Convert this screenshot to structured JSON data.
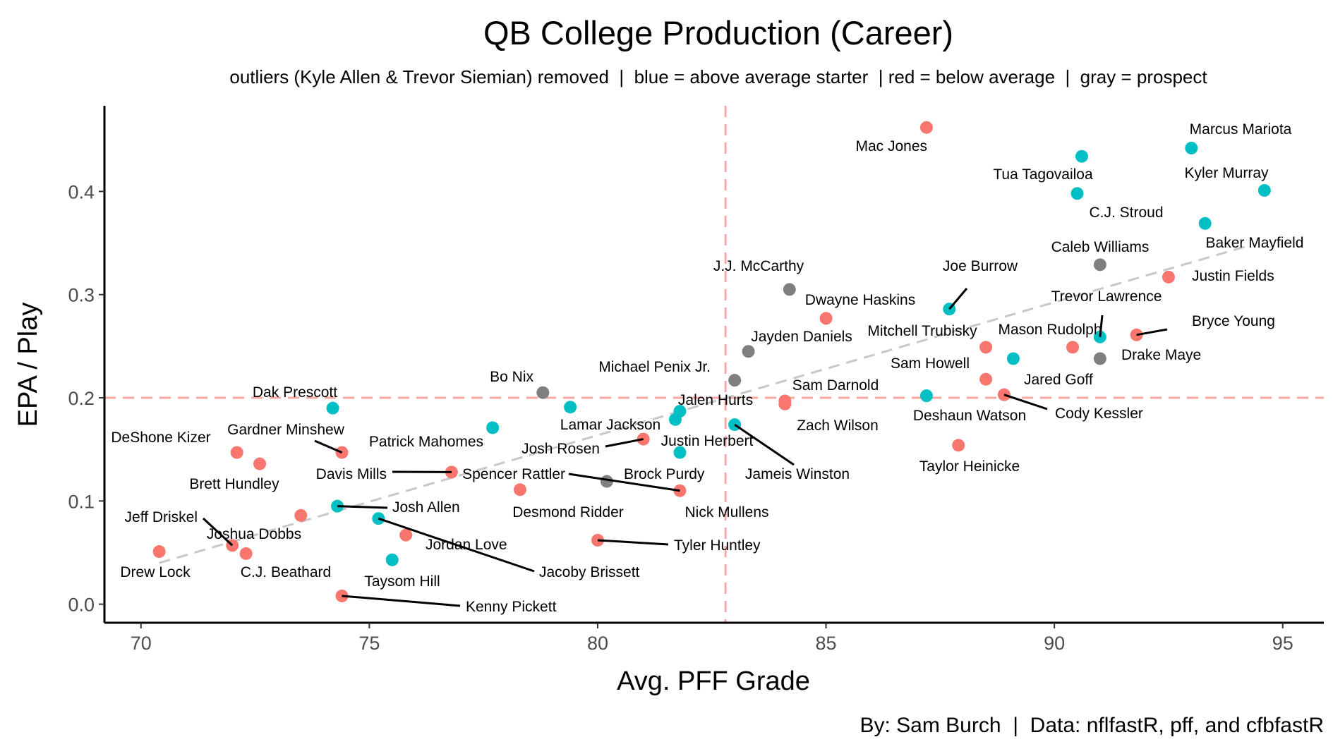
{
  "chart_data": {
    "type": "scatter",
    "title": "QB College Production (Career)",
    "subtitle": "outliers (Kyle Allen & Trevor Siemian) removed  |  blue = above average starter  | red = below average  |  gray = prospect",
    "caption": "By: Sam Burch  |  Data: nflfastR, pff, and cfbfastR",
    "xlabel": "Avg. PFF Grade",
    "ylabel": "EPA / Play",
    "xlim": [
      69.2,
      95.9
    ],
    "ylim": [
      -0.018,
      0.483
    ],
    "x_ticks": [
      70,
      75,
      80,
      85,
      90,
      95
    ],
    "y_ticks": [
      0.0,
      0.1,
      0.2,
      0.3,
      0.4
    ],
    "y_tick_labels": [
      "0.0",
      "0.1",
      "0.2",
      "0.3",
      "0.4"
    ],
    "reference_lines": {
      "vertical_x": 82.8,
      "horizontal_y": 0.2
    },
    "trend_line": {
      "x1": 70.4,
      "y1": 0.04,
      "x2": 94.3,
      "y2": 0.348
    },
    "colors": {
      "blue": "#00BFC4",
      "red": "#F8766D",
      "gray": "#7F7F7F",
      "reference": "#F8A9A4",
      "trend": "#C8C8C8"
    },
    "points": [
      {
        "name": "Mac Jones",
        "x": 87.2,
        "y": 0.462,
        "group": "red"
      },
      {
        "name": "Marcus Mariota",
        "x": 93.0,
        "y": 0.442,
        "group": "blue"
      },
      {
        "name": "Tua Tagovailoa",
        "x": 90.6,
        "y": 0.434,
        "group": "blue"
      },
      {
        "name": "Kyler Murray",
        "x": 94.6,
        "y": 0.401,
        "group": "blue"
      },
      {
        "name": "C.J. Stroud",
        "x": 90.5,
        "y": 0.398,
        "group": "blue"
      },
      {
        "name": "Baker Mayfield",
        "x": 93.3,
        "y": 0.369,
        "group": "blue"
      },
      {
        "name": "Caleb Williams",
        "x": 91.0,
        "y": 0.329,
        "group": "gray"
      },
      {
        "name": "Justin Fields",
        "x": 92.5,
        "y": 0.317,
        "group": "red"
      },
      {
        "name": "J.J. McCarthy",
        "x": 84.2,
        "y": 0.305,
        "group": "gray"
      },
      {
        "name": "Joe Burrow",
        "x": 87.7,
        "y": 0.286,
        "group": "blue"
      },
      {
        "name": "Dwayne Haskins",
        "x": 85.0,
        "y": 0.277,
        "group": "red"
      },
      {
        "name": "Trevor Lawrence",
        "x": 91.0,
        "y": 0.259,
        "group": "blue"
      },
      {
        "name": "Bryce Young",
        "x": 91.8,
        "y": 0.261,
        "group": "red"
      },
      {
        "name": "Mason Rudolph",
        "x": 90.4,
        "y": 0.249,
        "group": "red"
      },
      {
        "name": "Mitchell Trubisky",
        "x": 88.5,
        "y": 0.249,
        "group": "red"
      },
      {
        "name": "Jayden Daniels",
        "x": 83.3,
        "y": 0.245,
        "group": "gray"
      },
      {
        "name": "Sam Howell",
        "x": 89.1,
        "y": 0.238,
        "group": "blue"
      },
      {
        "name": "Drake Maye",
        "x": 91.0,
        "y": 0.238,
        "group": "gray"
      },
      {
        "name": "Jared Goff",
        "x": 88.5,
        "y": 0.218,
        "group": "red"
      },
      {
        "name": "Michael Penix Jr.",
        "x": 83.0,
        "y": 0.217,
        "group": "gray"
      },
      {
        "name": "Bo Nix",
        "x": 78.8,
        "y": 0.205,
        "group": "gray"
      },
      {
        "name": "Cody Kessler",
        "x": 88.9,
        "y": 0.203,
        "group": "red"
      },
      {
        "name": "Deshaun Watson",
        "x": 87.2,
        "y": 0.202,
        "group": "blue"
      },
      {
        "name": "Sam Darnold",
        "x": 84.1,
        "y": 0.197,
        "group": "red"
      },
      {
        "name": "Zach Wilson",
        "x": 84.1,
        "y": 0.194,
        "group": "red"
      },
      {
        "name": "Lamar Jackson",
        "x": 79.4,
        "y": 0.191,
        "group": "blue"
      },
      {
        "name": "Dak Prescott",
        "x": 74.2,
        "y": 0.19,
        "group": "blue"
      },
      {
        "name": "Jalen Hurts",
        "x": 81.8,
        "y": 0.187,
        "group": "blue"
      },
      {
        "name": "Justin Herbert",
        "x": 81.7,
        "y": 0.179,
        "group": "blue"
      },
      {
        "name": "Jameis Winston",
        "x": 83.0,
        "y": 0.174,
        "group": "blue"
      },
      {
        "name": "Patrick Mahomes",
        "x": 77.7,
        "y": 0.171,
        "group": "blue"
      },
      {
        "name": "Josh Rosen",
        "x": 81.0,
        "y": 0.16,
        "group": "red"
      },
      {
        "name": "Taylor Heinicke",
        "x": 87.9,
        "y": 0.154,
        "group": "red"
      },
      {
        "name": "Gardner Minshew",
        "x": 74.4,
        "y": 0.147,
        "group": "red"
      },
      {
        "name": "DeShone Kizer",
        "x": 72.1,
        "y": 0.147,
        "group": "red"
      },
      {
        "name": "Nick Mullens",
        "x": 81.8,
        "y": 0.147,
        "group": "blue"
      },
      {
        "name": "Brett Hundley",
        "x": 72.6,
        "y": 0.136,
        "group": "red"
      },
      {
        "name": "Davis Mills",
        "x": 76.8,
        "y": 0.128,
        "group": "red"
      },
      {
        "name": "Brock Purdy",
        "x": 80.2,
        "y": 0.119,
        "group": "gray"
      },
      {
        "name": "Desmond Ridder",
        "x": 78.3,
        "y": 0.111,
        "group": "red"
      },
      {
        "name": "Spencer Rattler",
        "x": 81.8,
        "y": 0.11,
        "group": "red"
      },
      {
        "name": "Josh Allen",
        "x": 74.3,
        "y": 0.095,
        "group": "blue"
      },
      {
        "name": "Joshua Dobbs",
        "x": 73.5,
        "y": 0.086,
        "group": "red"
      },
      {
        "name": "Jacoby Brissett",
        "x": 75.2,
        "y": 0.083,
        "group": "blue"
      },
      {
        "name": "Jordan Love",
        "x": 75.8,
        "y": 0.067,
        "group": "red"
      },
      {
        "name": "Tyler Huntley",
        "x": 80.0,
        "y": 0.062,
        "group": "red"
      },
      {
        "name": "Jeff Driskel",
        "x": 72.0,
        "y": 0.057,
        "group": "red"
      },
      {
        "name": "Drew Lock",
        "x": 70.4,
        "y": 0.051,
        "group": "red"
      },
      {
        "name": "C.J. Beathard",
        "x": 72.3,
        "y": 0.049,
        "group": "red"
      },
      {
        "name": "Taysom Hill",
        "x": 75.5,
        "y": 0.043,
        "group": "blue"
      },
      {
        "name": "Kenny Pickett",
        "x": 74.4,
        "y": 0.008,
        "group": "red"
      }
    ]
  }
}
